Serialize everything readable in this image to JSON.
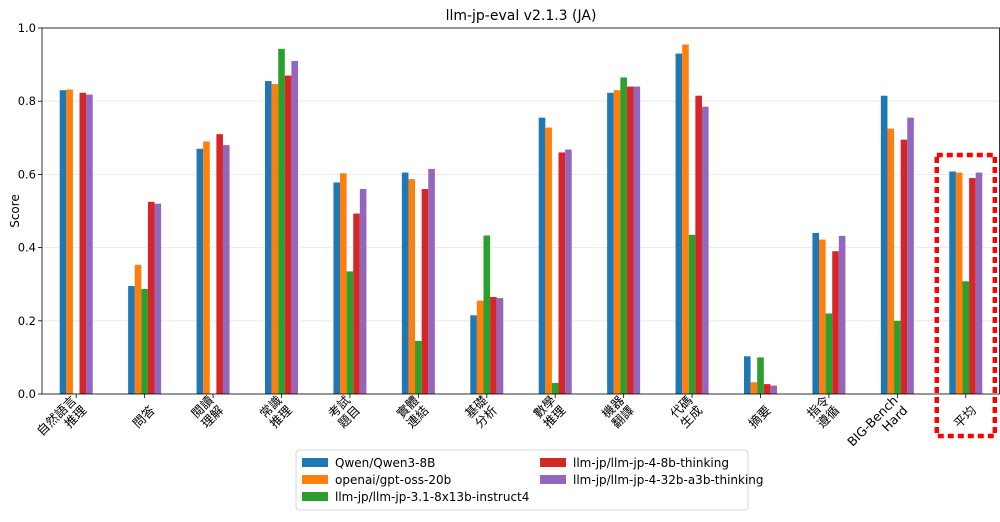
{
  "chart_data": {
    "type": "bar",
    "title": "llm-jp-eval v2.1.3 (JA)",
    "xlabel": "",
    "ylabel": "Score",
    "ylim": [
      0,
      1.0
    ],
    "yticks": [
      "0.0",
      "0.2",
      "0.4",
      "0.6",
      "0.8",
      "1.0"
    ],
    "grid": true,
    "legend_position": "bottom-center",
    "categories": [
      [
        "自然語言",
        "推理"
      ],
      [
        "問答"
      ],
      [
        "閱讀",
        "理解"
      ],
      [
        "常識",
        "推理"
      ],
      [
        "考試",
        "題目"
      ],
      [
        "實體",
        "連結"
      ],
      [
        "基礎",
        "分析"
      ],
      [
        "數學",
        "推理"
      ],
      [
        "機器",
        "翻譯"
      ],
      [
        "代碼",
        "生成"
      ],
      [
        "摘要"
      ],
      [
        "指令",
        "遵循"
      ],
      [
        "BIG-Bench",
        "Hard"
      ],
      [
        "平均"
      ]
    ],
    "highlighted_category": "平均",
    "series": [
      {
        "name": "Qwen/Qwen3-8B",
        "color": "#1f77b4",
        "values": [
          0.83,
          0.295,
          0.67,
          0.855,
          0.578,
          0.605,
          0.215,
          0.755,
          0.823,
          0.93,
          0.103,
          0.44,
          0.815,
          0.608
        ]
      },
      {
        "name": "openai/gpt-oss-20b",
        "color": "#ff7f0e",
        "values": [
          0.832,
          0.353,
          0.69,
          0.847,
          0.603,
          0.587,
          0.255,
          0.728,
          0.83,
          0.955,
          0.032,
          0.422,
          0.725,
          0.605
        ]
      },
      {
        "name": "llm-jp/llm-jp-3.1-8x13b-instruct4",
        "color": "#2ca02c",
        "values": [
          0.0,
          0.287,
          0.0,
          0.943,
          0.335,
          0.145,
          0.433,
          0.03,
          0.865,
          0.435,
          0.1,
          0.22,
          0.2,
          0.308
        ]
      },
      {
        "name": "llm-jp/llm-jp-4-8b-thinking",
        "color": "#d62728",
        "values": [
          0.823,
          0.525,
          0.71,
          0.87,
          0.493,
          0.56,
          0.265,
          0.66,
          0.84,
          0.815,
          0.027,
          0.39,
          0.695,
          0.59
        ]
      },
      {
        "name": "llm-jp/llm-jp-4-32b-a3b-thinking",
        "color": "#9467bd",
        "values": [
          0.818,
          0.52,
          0.68,
          0.91,
          0.56,
          0.615,
          0.262,
          0.668,
          0.84,
          0.785,
          0.023,
          0.432,
          0.755,
          0.605
        ]
      }
    ],
    "highlight_color": "#ff0000"
  }
}
